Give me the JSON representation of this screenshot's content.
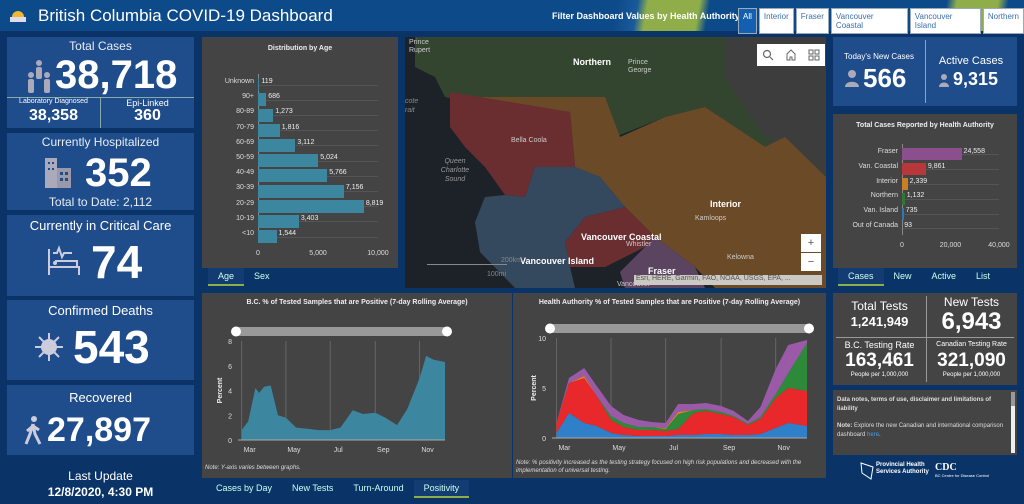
{
  "header": {
    "title": "British Columbia COVID-19 Dashboard",
    "filter_label": "Filter Dashboard Values by Health Authority:",
    "filters": [
      "All",
      "Interior",
      "Fraser",
      "Vancouver Coastal",
      "Vancouver Island",
      "Northern"
    ],
    "selected_filter": "All"
  },
  "left": {
    "total_cases": {
      "label": "Total Cases",
      "value": "38,718",
      "lab_label": "Laboratory Diagnosed",
      "lab_value": "38,358",
      "epi_label": "Epi-Linked",
      "epi_value": "360"
    },
    "hospitalized": {
      "label": "Currently Hospitalized",
      "value": "352",
      "total": "Total to Date: 2,112"
    },
    "critical": {
      "label": "Currently in Critical Care",
      "value": "74"
    },
    "deaths": {
      "label": "Confirmed Deaths",
      "value": "543"
    },
    "recovered": {
      "label": "Recovered",
      "value": "27,897"
    },
    "last_update_label": "Last Update",
    "last_update": "12/8/2020, 4:30 PM"
  },
  "age_tabs": [
    "Age",
    "Sex"
  ],
  "age_tab_active": "Age",
  "map": {
    "regions": [
      "Northern",
      "Interior",
      "Vancouver Coastal",
      "Vancouver Island",
      "Fraser"
    ],
    "places": [
      "Prince Rupert",
      "Prince George",
      "Bella Coola",
      "Queen Charlotte Sound",
      "Kamloops",
      "Whistler",
      "Kelowna",
      "Vancouver",
      "cote rait"
    ],
    "attribution": "Esri, HERE, Garmin, FAO, NOAA, USGS, EPA, ...",
    "scale_km": "200km",
    "scale_mi": "100mi",
    "zoom_in": "+",
    "zoom_out": "−",
    "colors": {
      "Northern": "#33452f",
      "Interior": "#6b4a28",
      "Vancouver Coastal": "#6a2d30",
      "Vancouver Island": "#34485e",
      "Fraser": "#5a4460"
    }
  },
  "right": {
    "new_cases": {
      "label": "Today's New Cases",
      "value": "566"
    },
    "active": {
      "label": "Active Cases",
      "value": "9,315"
    },
    "ha_tabs": [
      "Cases",
      "New",
      "Active",
      "List"
    ],
    "ha_tab_active": "Cases",
    "tests": {
      "total_label": "Total Tests",
      "total": "1,241,949",
      "new_label": "New Tests",
      "new": "6,943",
      "bc_label": "B.C. Testing Rate",
      "bc": "163,461",
      "bc_unit": "People per 1,000,000",
      "ca_label": "Canadian Testing Rate",
      "ca": "321,090",
      "ca_unit": "People per 1,000,000"
    },
    "notes": {
      "line1": "Data notes, terms of use, disclaimer and limitations of liability",
      "note_bold": "Note:",
      "note_text": " Explore the new Canadian and international comparison dashboard ",
      "link": "here",
      "end": "."
    },
    "logos": [
      "Provincial Health Services Authority",
      "BC Centre for Disease Control"
    ]
  },
  "bottom_tabs": [
    "Cases by Day",
    "New Tests",
    "Turn-Around",
    "Positivity"
  ],
  "bottom_tab_active": "Positivity",
  "chart_data": [
    {
      "type": "bar",
      "orientation": "horizontal",
      "title": "Distribution by Age",
      "categories": [
        "Unknown",
        "90+",
        "80-89",
        "70-79",
        "60-69",
        "50-59",
        "40-49",
        "30-39",
        "20-29",
        "10-19",
        "<10"
      ],
      "values": [
        119,
        686,
        1273,
        1816,
        3112,
        5024,
        5766,
        7156,
        8819,
        3403,
        1544
      ],
      "labels": [
        "119",
        "686",
        "1,273",
        "1,816",
        "3,112",
        "5,024",
        "5,766",
        "7,156",
        "8,819",
        "3,403",
        "1,544"
      ],
      "xlim": [
        0,
        10000
      ],
      "ticks": [
        "0",
        "5,000",
        "10,000"
      ],
      "color": "#3d86a0"
    },
    {
      "type": "bar",
      "orientation": "horizontal",
      "title": "Total Cases Reported by Health Authority",
      "categories": [
        "Fraser",
        "Van. Coastal",
        "Interior",
        "Northern",
        "Van. Island",
        "Out of Canada"
      ],
      "values": [
        24558,
        9861,
        2339,
        1132,
        735,
        93
      ],
      "labels": [
        "24,558",
        "9,861",
        "2,339",
        "1,132",
        "735",
        "93"
      ],
      "colors": [
        "#8a4f8c",
        "#b8383a",
        "#c97f26",
        "#2e7a34",
        "#2f78b8",
        "#888888"
      ],
      "xlim": [
        0,
        40000
      ],
      "ticks": [
        "0",
        "20,000",
        "40,000"
      ]
    },
    {
      "type": "area",
      "title": "B.C. % of Tested Samples that are Positive (7-day Rolling Average)",
      "ylabel": "Percent",
      "ylim": [
        0,
        8
      ],
      "yticks": [
        "0",
        "2",
        "4",
        "6",
        "8"
      ],
      "xticks": [
        "Mar",
        "May",
        "Jul",
        "Sep",
        "Nov"
      ],
      "x": [
        "2020-03-01",
        "2020-03-10",
        "2020-03-20",
        "2020-03-25",
        "2020-04-01",
        "2020-04-10",
        "2020-04-20",
        "2020-05-01",
        "2020-05-15",
        "2020-06-01",
        "2020-06-15",
        "2020-07-01",
        "2020-07-15",
        "2020-08-01",
        "2020-08-15",
        "2020-09-01",
        "2020-09-15",
        "2020-10-01",
        "2020-10-15",
        "2020-11-01",
        "2020-11-10",
        "2020-11-20",
        "2020-12-06"
      ],
      "values": [
        0.8,
        1.5,
        4.2,
        3.8,
        4.3,
        4.4,
        2.0,
        1.8,
        1.0,
        0.9,
        0.8,
        0.8,
        1.0,
        2.4,
        2.1,
        2.2,
        1.8,
        1.2,
        2.5,
        5.0,
        6.8,
        6.5,
        6.3
      ],
      "color": "#3d86a0",
      "note": "Note: Y-axis varies between graphs."
    },
    {
      "type": "area",
      "stacked": true,
      "title": "Health Authority % of Tested Samples that are Positive (7-day Rolling Average)",
      "ylabel": "Percent",
      "ylim": [
        0,
        10
      ],
      "yticks": [
        "0",
        "5",
        "10"
      ],
      "xticks": [
        "Mar",
        "May",
        "Jul",
        "Sep",
        "Nov"
      ],
      "x": [
        "2020-03-01",
        "2020-03-15",
        "2020-04-01",
        "2020-04-15",
        "2020-05-01",
        "2020-05-15",
        "2020-06-01",
        "2020-06-15",
        "2020-07-01",
        "2020-07-15",
        "2020-08-01",
        "2020-08-15",
        "2020-09-01",
        "2020-09-15",
        "2020-10-01",
        "2020-10-15",
        "2020-11-01",
        "2020-11-15",
        "2020-12-06"
      ],
      "series": [
        {
          "color": "#2f80c8",
          "values": [
            0.5,
            2.5,
            1.5,
            1.2,
            0.5,
            0.3,
            0.2,
            0.2,
            0.2,
            0.3,
            0.3,
            0.4,
            0.4,
            0.3,
            0.3,
            0.4,
            1.0,
            1.5,
            1.2
          ]
        },
        {
          "color": "#e8282a",
          "values": [
            1,
            3,
            4.5,
            3,
            1.3,
            0.8,
            0.6,
            0.6,
            0.5,
            0.6,
            2.2,
            2.3,
            2,
            1.8,
            1,
            1.5,
            3,
            3.5,
            3.5
          ]
        },
        {
          "color": "#2e8a3a",
          "values": [
            0,
            0,
            0,
            0,
            0.4,
            0.4,
            0.3,
            0.3,
            0.2,
            1.5,
            0.3,
            0.2,
            0.2,
            0.1,
            0.1,
            0.2,
            0.4,
            1.5,
            4.8
          ]
        },
        {
          "color": "#e08a1a",
          "values": [
            0,
            0,
            0.2,
            0,
            0,
            0,
            0,
            0,
            0.1,
            0.2,
            0,
            0,
            0,
            0,
            0,
            0,
            0,
            0,
            0
          ]
        },
        {
          "color": "#9a5aa8",
          "values": [
            0,
            0.5,
            0.8,
            1,
            1,
            0.8,
            0.7,
            0.5,
            0.5,
            0.8,
            0.6,
            0.6,
            0.6,
            0.5,
            0.3,
            1.0,
            2.5,
            2.8,
            0.3
          ]
        }
      ],
      "note": "Note: % positivity increased as the testing strategy focused on high risk populations and decreased with the implementation of universal testing."
    }
  ]
}
